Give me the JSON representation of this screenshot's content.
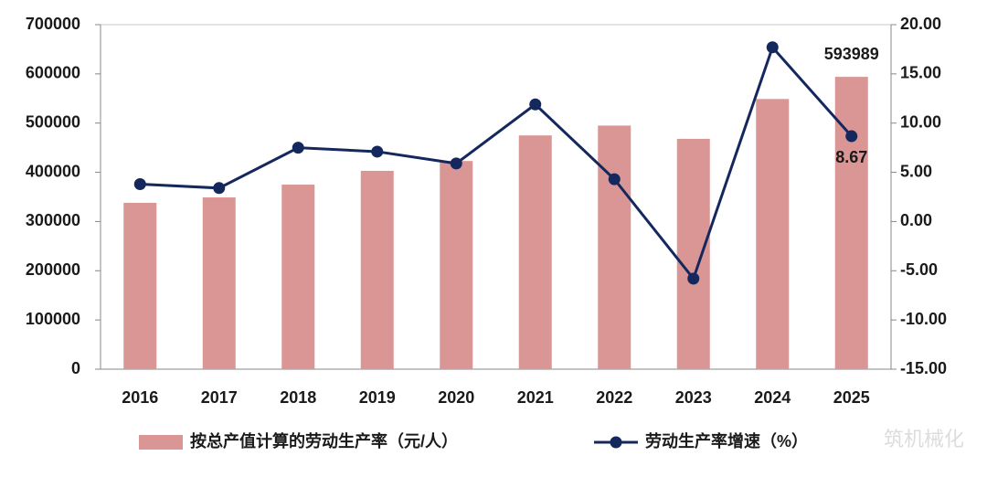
{
  "chart_data": {
    "type": "bar_line",
    "categories": [
      "2016",
      "2017",
      "2018",
      "2019",
      "2020",
      "2021",
      "2022",
      "2023",
      "2024",
      "2025"
    ],
    "series": [
      {
        "name": "按总产值计算的劳动生产率（元/人）",
        "type": "bar",
        "color": "#d99694",
        "values": [
          338000,
          349000,
          375000,
          403000,
          423000,
          475000,
          495000,
          468000,
          549000,
          593989
        ],
        "labeled": [
          9
        ]
      },
      {
        "name": "劳动生产率增速（%）",
        "type": "line",
        "axis": "y2",
        "color": "#14285e",
        "values": [
          3.8,
          3.4,
          7.5,
          7.1,
          5.9,
          11.9,
          4.3,
          -5.8,
          17.7,
          8.67
        ],
        "labeled": [
          9
        ]
      }
    ],
    "ylim": [
      0,
      700000
    ],
    "yticks": [
      0,
      100000,
      200000,
      300000,
      400000,
      500000,
      600000,
      700000
    ],
    "y2lim": [
      -15,
      20
    ],
    "y2ticks": [
      {
        "value": -15,
        "label": "-15.00"
      },
      {
        "value": -10,
        "label": "-10.00"
      },
      {
        "value": -5,
        "label": "-5.00"
      },
      {
        "value": 0,
        "label": "0.00"
      },
      {
        "value": 5,
        "label": "5.00"
      },
      {
        "value": 10,
        "label": "10.00"
      },
      {
        "value": 15,
        "label": "15.00"
      },
      {
        "value": 20,
        "label": "20.00"
      }
    ],
    "legend": "bottom",
    "watermark": "筑机械化"
  }
}
